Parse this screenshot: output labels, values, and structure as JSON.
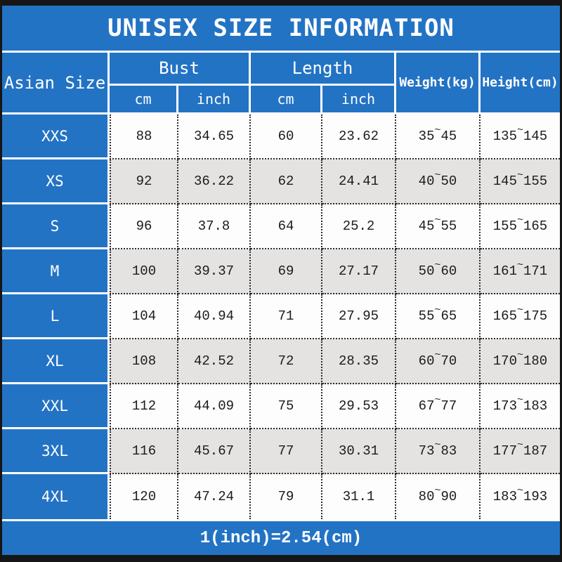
{
  "title": "UNISEX SIZE INFORMATION",
  "tilde": "~",
  "colors": {
    "accent": "#2373c4",
    "alt_row": "#e4e3e1",
    "bar": "#161616"
  },
  "header": {
    "size_col": "Asian Size",
    "bust": "Bust",
    "length": "Length",
    "cm": "cm",
    "inch": "inch",
    "weight": "Weight(kg)",
    "height": "Height(cm)"
  },
  "footer_note": "1(inch)=2.54(cm)",
  "chart_data": {
    "type": "table",
    "title": "UNISEX SIZE INFORMATION",
    "columns": [
      "Asian Size",
      "Bust cm",
      "Bust inch",
      "Length cm",
      "Length inch",
      "Weight(kg)",
      "Height(cm)"
    ],
    "rows": [
      {
        "size": "XXS",
        "bust_cm": "88",
        "bust_inch": "34.65",
        "length_cm": "60",
        "length_inch": "23.62",
        "weight": [
          "35",
          "45"
        ],
        "height": [
          "135",
          "145"
        ]
      },
      {
        "size": "XS",
        "bust_cm": "92",
        "bust_inch": "36.22",
        "length_cm": "62",
        "length_inch": "24.41",
        "weight": [
          "40",
          "50"
        ],
        "height": [
          "145",
          "155"
        ]
      },
      {
        "size": "S",
        "bust_cm": "96",
        "bust_inch": "37.8",
        "length_cm": "64",
        "length_inch": "25.2",
        "weight": [
          "45",
          "55"
        ],
        "height": [
          "155",
          "165"
        ]
      },
      {
        "size": "M",
        "bust_cm": "100",
        "bust_inch": "39.37",
        "length_cm": "69",
        "length_inch": "27.17",
        "weight": [
          "50",
          "60"
        ],
        "height": [
          "161",
          "171"
        ]
      },
      {
        "size": "L",
        "bust_cm": "104",
        "bust_inch": "40.94",
        "length_cm": "71",
        "length_inch": "27.95",
        "weight": [
          "55",
          "65"
        ],
        "height": [
          "165",
          "175"
        ]
      },
      {
        "size": "XL",
        "bust_cm": "108",
        "bust_inch": "42.52",
        "length_cm": "72",
        "length_inch": "28.35",
        "weight": [
          "60",
          "70"
        ],
        "height": [
          "170",
          "180"
        ]
      },
      {
        "size": "XXL",
        "bust_cm": "112",
        "bust_inch": "44.09",
        "length_cm": "75",
        "length_inch": "29.53",
        "weight": [
          "67",
          "77"
        ],
        "height": [
          "173",
          "183"
        ]
      },
      {
        "size": "3XL",
        "bust_cm": "116",
        "bust_inch": "45.67",
        "length_cm": "77",
        "length_inch": "30.31",
        "weight": [
          "73",
          "83"
        ],
        "height": [
          "177",
          "187"
        ]
      },
      {
        "size": "4XL",
        "bust_cm": "120",
        "bust_inch": "47.24",
        "length_cm": "79",
        "length_inch": "31.1",
        "weight": [
          "80",
          "90"
        ],
        "height": [
          "183",
          "193"
        ]
      }
    ],
    "note": "1(inch)=2.54(cm)"
  }
}
